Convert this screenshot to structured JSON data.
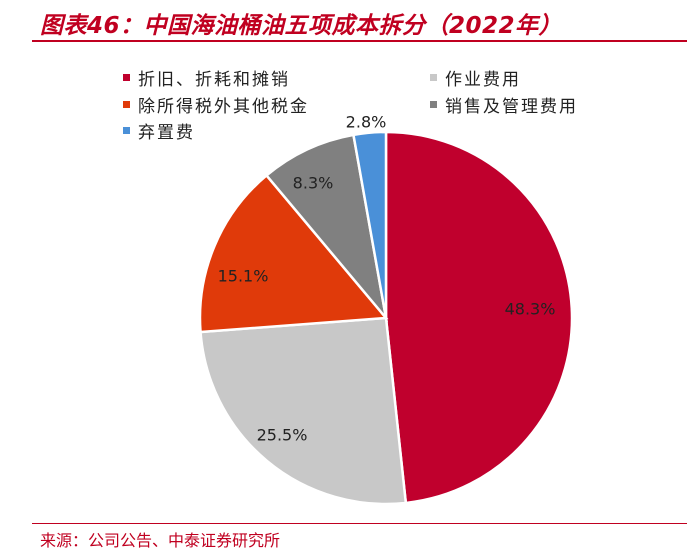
{
  "title": "图表46：中国海油桶油五项成本拆分（2022年）",
  "source": "来源：公司公告、中泰证券研究所",
  "chart_data": {
    "type": "pie",
    "title": "图表46：中国海油桶油五项成本拆分（2022年）",
    "legend_placement": "top",
    "slices": [
      {
        "name": "折旧、折耗和摊销",
        "value": 48.3,
        "label": "48.3%",
        "color": "#c0002d"
      },
      {
        "name": "作业费用",
        "value": 25.5,
        "label": "25.5%",
        "color": "#c8c8c8"
      },
      {
        "name": "除所得税外其他税金",
        "value": 15.1,
        "label": "15.1%",
        "color": "#e03a0a"
      },
      {
        "name": "销售及管理费用",
        "value": 8.3,
        "label": "8.3%",
        "color": "#808080"
      },
      {
        "name": "弃置费",
        "value": 2.8,
        "label": "2.8%",
        "color": "#4a90d8"
      }
    ]
  }
}
